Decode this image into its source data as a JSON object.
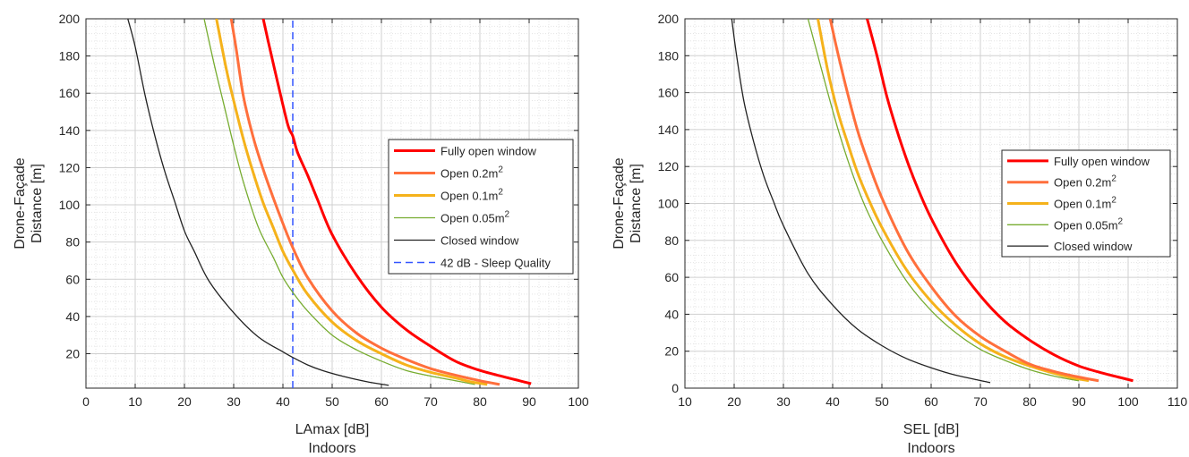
{
  "chart_data": [
    {
      "type": "line",
      "xlabel": "LAmax [dB]",
      "xlabel2": "Indoors",
      "ylabel": "Drone-Façade",
      "ylabel2": "Distance [m]",
      "xlim": [
        0,
        100
      ],
      "ylim": [
        1.5,
        200
      ],
      "xticks": [
        "0",
        "10",
        "20",
        "30",
        "40",
        "50",
        "60",
        "70",
        "80",
        "90",
        "100"
      ],
      "yticks": [
        "20",
        "40",
        "60",
        "80",
        "100",
        "120",
        "140",
        "160",
        "180",
        "200"
      ],
      "grid": true,
      "minor_grid": true,
      "legend_position": "right-middle",
      "series": [
        {
          "name": "Fully open window",
          "color": "#ff0000",
          "width": 3,
          "x": [
            90.4,
            88,
            85,
            80,
            75,
            70,
            65,
            60,
            55,
            50,
            47,
            45,
            43,
            42,
            41,
            39,
            37,
            36
          ],
          "y": [
            3.9,
            5.5,
            7.5,
            11,
            16,
            24,
            33,
            45,
            62,
            84,
            103,
            116,
            128,
            137,
            143,
            165,
            188,
            200
          ]
        },
        {
          "name": "Open 0.2m",
          "sup": "2",
          "color": "#ff6f3c",
          "width": 3,
          "x": [
            84,
            80,
            75,
            70,
            65,
            60,
            55,
            50,
            45,
            42,
            40,
            38,
            36,
            34,
            32,
            30.5,
            29.5
          ],
          "y": [
            3.5,
            5.5,
            8.5,
            12,
            17,
            23,
            31,
            43,
            61,
            77,
            90,
            104,
            119,
            136,
            158,
            184,
            200
          ]
        },
        {
          "name": "Open 0.1m",
          "sup": "2",
          "color": "#f5b21b",
          "width": 3,
          "x": [
            81.5,
            78,
            75,
            70,
            65,
            60,
            55,
            50,
            45,
            42,
            40,
            38,
            36,
            34,
            32,
            30,
            28.5,
            26.5
          ],
          "y": [
            3.5,
            5,
            7,
            10,
            14,
            20,
            27,
            37,
            52,
            65,
            75,
            88,
            101,
            117,
            135,
            156,
            173,
            200
          ]
        },
        {
          "name": "Open 0.05m",
          "sup": "2",
          "color": "#77ac30",
          "width": 1.3,
          "x": [
            79,
            75,
            70,
            65,
            60,
            55,
            50,
            45,
            42,
            40,
            38,
            35,
            32,
            30,
            28,
            26,
            24
          ],
          "y": [
            3.5,
            5.5,
            8,
            11,
            16,
            22,
            30,
            43,
            53,
            61,
            72,
            88,
            112,
            132,
            154,
            176,
            200
          ]
        },
        {
          "name": "Closed window",
          "color": "#222222",
          "width": 1.3,
          "x": [
            61.5,
            57,
            52,
            48,
            45,
            42,
            40,
            35,
            30,
            25,
            22,
            20,
            18,
            16,
            14,
            12,
            10,
            8.5
          ],
          "y": [
            3,
            5,
            8,
            11,
            14,
            18,
            21,
            29,
            42,
            59,
            75,
            86,
            102,
            118,
            137,
            159,
            185,
            200
          ]
        },
        {
          "name": "42 dB - Sleep Quality",
          "color": "#3355ff",
          "width": 1.5,
          "dash": true,
          "x": [
            42,
            42
          ],
          "y": [
            1.5,
            200
          ]
        }
      ]
    },
    {
      "type": "line",
      "xlabel": "SEL [dB]",
      "xlabel2": "Indoors",
      "ylabel": "Drone-Façade",
      "ylabel2": "Distance [m]",
      "xlim": [
        10,
        110
      ],
      "ylim": [
        0,
        200
      ],
      "xticks": [
        "10",
        "20",
        "30",
        "40",
        "50",
        "60",
        "70",
        "80",
        "90",
        "100",
        "110"
      ],
      "yticks": [
        "0",
        "20",
        "40",
        "60",
        "80",
        "100",
        "120",
        "140",
        "160",
        "180",
        "200"
      ],
      "grid": true,
      "minor_grid": true,
      "legend_position": "right-middle",
      "series": [
        {
          "name": "Fully open window",
          "color": "#ff0000",
          "width": 3,
          "x": [
            101,
            98,
            95,
            90,
            85,
            80,
            75,
            70,
            65,
            60,
            57,
            55,
            53,
            51,
            49,
            47
          ],
          "y": [
            4,
            6,
            8,
            12,
            18,
            26,
            36,
            50,
            68,
            92,
            110,
            124,
            140,
            158,
            180,
            200
          ]
        },
        {
          "name": "Open 0.2m",
          "sup": "2",
          "color": "#ff6f3c",
          "width": 3,
          "x": [
            94,
            90,
            85,
            80,
            75,
            70,
            65,
            60,
            55,
            50,
            47,
            45,
            43,
            41,
            39.5
          ],
          "y": [
            4,
            6,
            9,
            13,
            20,
            28,
            39,
            55,
            75,
            103,
            124,
            140,
            160,
            182,
            200
          ]
        },
        {
          "name": "Open 0.1m",
          "sup": "2",
          "color": "#f5b21b",
          "width": 3,
          "x": [
            92,
            88,
            85,
            80,
            75,
            70,
            65,
            60,
            55,
            50,
            47,
            45,
            43,
            41,
            39,
            37
          ],
          "y": [
            4,
            6,
            8,
            12,
            17,
            24,
            34,
            47,
            64,
            87,
            104,
            117,
            133,
            150,
            172,
            200
          ]
        },
        {
          "name": "Open 0.05m",
          "sup": "2",
          "color": "#77ac30",
          "width": 1.3,
          "x": [
            90,
            85,
            80,
            75,
            70,
            65,
            60,
            55,
            50,
            47,
            45,
            43,
            41,
            39,
            37,
            35
          ],
          "y": [
            4,
            6.5,
            10,
            15,
            21,
            30,
            42,
            58,
            80,
            96,
            109,
            124,
            141,
            160,
            180,
            200
          ]
        },
        {
          "name": "Closed window",
          "color": "#222222",
          "width": 1.3,
          "x": [
            72,
            65,
            60,
            55,
            50,
            45,
            40,
            35,
            30,
            28,
            26,
            24,
            22,
            20.5,
            19.5
          ],
          "y": [
            3,
            7,
            11,
            16,
            23,
            32,
            45,
            62,
            88,
            101,
            115,
            133,
            155,
            180,
            200
          ]
        }
      ]
    }
  ]
}
